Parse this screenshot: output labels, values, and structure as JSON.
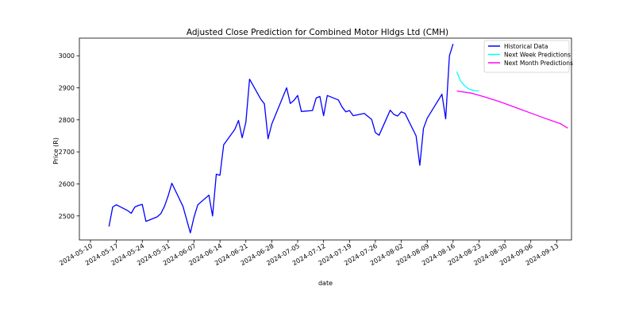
{
  "chart_data": {
    "type": "line",
    "title": "Adjusted Close Prediction for Combined Motor Hldgs Ltd (CMH)",
    "xlabel": "date",
    "ylabel": "Price (R)",
    "x_ticks": [
      "2024-05-10",
      "2024-05-17",
      "2024-05-24",
      "2024-05-31",
      "2024-06-07",
      "2024-06-14",
      "2024-06-21",
      "2024-06-28",
      "2024-07-05",
      "2024-07-12",
      "2024-07-19",
      "2024-07-26",
      "2024-08-02",
      "2024-08-09",
      "2024-08-16",
      "2024-08-23",
      "2024-08-30",
      "2024-09-06",
      "2024-09-13"
    ],
    "y_ticks": [
      2500,
      2600,
      2700,
      2800,
      2900,
      3000
    ],
    "xlim": [
      "2024-05-07",
      "2024-09-17"
    ],
    "ylim": [
      2425,
      3055
    ],
    "grid": false,
    "legend_position": "top-right",
    "series": [
      {
        "name": "Historical Data",
        "color": "#0000ff",
        "points": [
          [
            "2024-05-15",
            2467
          ],
          [
            "2024-05-16",
            2528
          ],
          [
            "2024-05-17",
            2535
          ],
          [
            "2024-05-20",
            2517
          ],
          [
            "2024-05-21",
            2508
          ],
          [
            "2024-05-22",
            2528
          ],
          [
            "2024-05-23",
            2533
          ],
          [
            "2024-05-24",
            2536
          ],
          [
            "2024-05-25",
            2483
          ],
          [
            "2024-05-28",
            2497
          ],
          [
            "2024-05-29",
            2507
          ],
          [
            "2024-05-30",
            2530
          ],
          [
            "2024-05-31",
            2563
          ],
          [
            "2024-06-01",
            2602
          ],
          [
            "2024-06-04",
            2530
          ],
          [
            "2024-06-06",
            2447
          ],
          [
            "2024-06-07",
            2497
          ],
          [
            "2024-06-08",
            2535
          ],
          [
            "2024-06-11",
            2565
          ],
          [
            "2024-06-12",
            2500
          ],
          [
            "2024-06-13",
            2630
          ],
          [
            "2024-06-14",
            2627
          ],
          [
            "2024-06-15",
            2722
          ],
          [
            "2024-06-18",
            2770
          ],
          [
            "2024-06-19",
            2798
          ],
          [
            "2024-06-20",
            2744
          ],
          [
            "2024-06-21",
            2793
          ],
          [
            "2024-06-22",
            2927
          ],
          [
            "2024-06-25",
            2865
          ],
          [
            "2024-06-26",
            2850
          ],
          [
            "2024-06-27",
            2741
          ],
          [
            "2024-06-28",
            2787
          ],
          [
            "2024-07-02",
            2900
          ],
          [
            "2024-07-03",
            2851
          ],
          [
            "2024-07-04",
            2861
          ],
          [
            "2024-07-05",
            2876
          ],
          [
            "2024-07-06",
            2826
          ],
          [
            "2024-07-09",
            2829
          ],
          [
            "2024-07-10",
            2868
          ],
          [
            "2024-07-11",
            2873
          ],
          [
            "2024-07-12",
            2813
          ],
          [
            "2024-07-13",
            2876
          ],
          [
            "2024-07-16",
            2862
          ],
          [
            "2024-07-17",
            2840
          ],
          [
            "2024-07-18",
            2825
          ],
          [
            "2024-07-19",
            2829
          ],
          [
            "2024-07-20",
            2813
          ],
          [
            "2024-07-23",
            2820
          ],
          [
            "2024-07-25",
            2801
          ],
          [
            "2024-07-26",
            2760
          ],
          [
            "2024-07-27",
            2752
          ],
          [
            "2024-07-30",
            2830
          ],
          [
            "2024-07-31",
            2817
          ],
          [
            "2024-08-01",
            2812
          ],
          [
            "2024-08-02",
            2825
          ],
          [
            "2024-08-03",
            2820
          ],
          [
            "2024-08-06",
            2750
          ],
          [
            "2024-08-07",
            2658
          ],
          [
            "2024-08-08",
            2773
          ],
          [
            "2024-08-09",
            2805
          ],
          [
            "2024-08-13",
            2880
          ],
          [
            "2024-08-14",
            2803
          ],
          [
            "2024-08-15",
            3000
          ],
          [
            "2024-08-16",
            3037
          ]
        ]
      },
      {
        "name": "Next Week Predictions",
        "color": "#00ffff",
        "points": [
          [
            "2024-08-17",
            2950
          ],
          [
            "2024-08-18",
            2921
          ],
          [
            "2024-08-19",
            2908
          ],
          [
            "2024-08-20",
            2898
          ],
          [
            "2024-08-21",
            2893
          ],
          [
            "2024-08-22",
            2891
          ],
          [
            "2024-08-23",
            2890
          ]
        ]
      },
      {
        "name": "Next Month Predictions",
        "color": "#ff00ff",
        "points": [
          [
            "2024-08-17",
            2890
          ],
          [
            "2024-08-21",
            2883
          ],
          [
            "2024-08-25",
            2870
          ],
          [
            "2024-08-29",
            2855
          ],
          [
            "2024-09-02",
            2838
          ],
          [
            "2024-09-06",
            2821
          ],
          [
            "2024-09-10",
            2804
          ],
          [
            "2024-09-14",
            2788
          ],
          [
            "2024-09-16",
            2774
          ]
        ]
      }
    ]
  }
}
